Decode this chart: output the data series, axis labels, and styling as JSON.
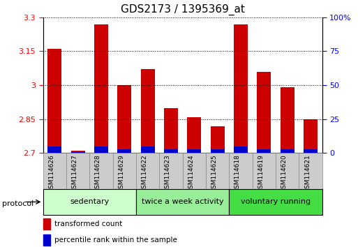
{
  "title": "GDS2173 / 1395369_at",
  "samples": [
    "GSM114626",
    "GSM114627",
    "GSM114628",
    "GSM114629",
    "GSM114622",
    "GSM114623",
    "GSM114624",
    "GSM114625",
    "GSM114618",
    "GSM114619",
    "GSM114620",
    "GSM114621"
  ],
  "red_values": [
    3.16,
    2.71,
    3.27,
    3.0,
    3.07,
    2.9,
    2.86,
    2.82,
    3.27,
    3.06,
    2.99,
    2.85
  ],
  "blue_pct": [
    5,
    1,
    5,
    3,
    5,
    3,
    3,
    3,
    5,
    3,
    3,
    3
  ],
  "baseline": 2.7,
  "ylim_left": [
    2.7,
    3.3
  ],
  "ylim_right": [
    0,
    100
  ],
  "yticks_left": [
    2.7,
    2.85,
    3.0,
    3.15,
    3.3
  ],
  "yticks_right": [
    0,
    25,
    50,
    75,
    100
  ],
  "ytick_labels_left": [
    "2.7",
    "2.85",
    "3",
    "3.15",
    "3.3"
  ],
  "ytick_labels_right": [
    "0",
    "25",
    "50",
    "75",
    "100%"
  ],
  "groups": [
    {
      "label": "sedentary",
      "start": 0,
      "end": 3,
      "color": "#ccffcc"
    },
    {
      "label": "twice a week activity",
      "start": 4,
      "end": 7,
      "color": "#99ee99"
    },
    {
      "label": "voluntary running",
      "start": 8,
      "end": 11,
      "color": "#44dd44"
    }
  ],
  "red_color": "#cc0000",
  "blue_color": "#0000cc",
  "bar_bg_color": "#cccccc",
  "title_fontsize": 11,
  "tick_fontsize": 8,
  "label_fontsize": 8,
  "protocol_label": "protocol",
  "legend_red": "transformed count",
  "legend_blue": "percentile rank within the sample"
}
